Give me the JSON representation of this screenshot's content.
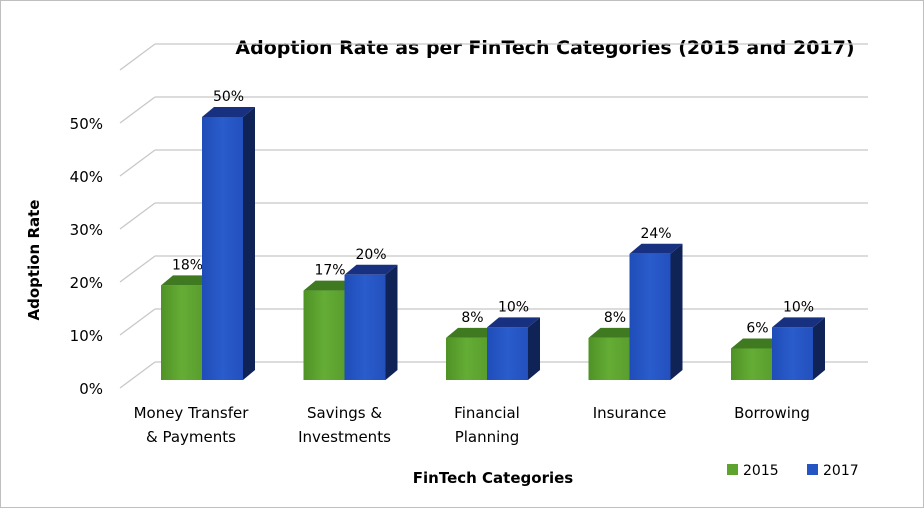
{
  "chart_data": {
    "type": "bar",
    "title": "Adoption Rate as per FinTech Categories (2015 and 2017)",
    "xlabel": "FinTech Categories",
    "ylabel": "Adoption Rate",
    "categories": [
      [
        "Money Transfer",
        "& Payments"
      ],
      [
        "Savings &",
        "Investments"
      ],
      [
        "Financial",
        "Planning"
      ],
      [
        "Insurance"
      ],
      [
        "Borrowing"
      ]
    ],
    "series": [
      {
        "name": "2015",
        "values": [
          18,
          17,
          8,
          8,
          6
        ],
        "labels": [
          "18%",
          "17%",
          "8%",
          "8%",
          "6%"
        ],
        "color": "#5ea330"
      },
      {
        "name": "2017",
        "values": [
          50,
          20,
          10,
          24,
          10
        ],
        "labels": [
          "50%",
          "20%",
          "10%",
          "24%",
          "10%"
        ],
        "color": "#2455c3"
      }
    ],
    "ylim": [
      0,
      50
    ],
    "yticks": [
      "0%",
      "10%",
      "20%",
      "30%",
      "40%",
      "50%"
    ],
    "grid": true,
    "style": "3d-clustered-column",
    "legend": "bottom-right"
  }
}
